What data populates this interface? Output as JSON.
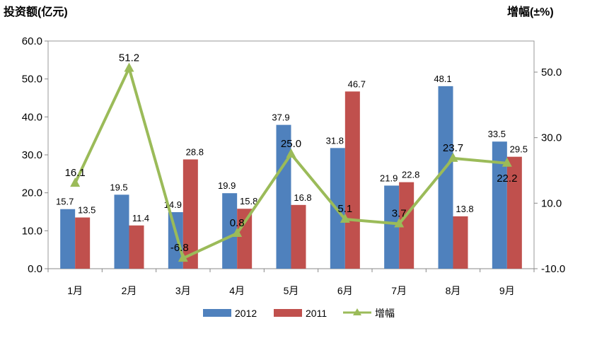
{
  "chart_data": {
    "type": "bar+line",
    "categories": [
      "1月",
      "2月",
      "3月",
      "4月",
      "5月",
      "6月",
      "7月",
      "8月",
      "9月"
    ],
    "series": [
      {
        "name": "2012",
        "type": "bar",
        "axis": "left",
        "color": "#4F81BD",
        "values": [
          15.7,
          19.5,
          14.9,
          19.9,
          37.9,
          31.8,
          21.9,
          48.1,
          33.5
        ]
      },
      {
        "name": "2011",
        "type": "bar",
        "axis": "left",
        "color": "#C0504D",
        "values": [
          13.5,
          11.4,
          28.8,
          15.8,
          16.8,
          46.7,
          22.8,
          13.8,
          29.5
        ]
      },
      {
        "name": "增幅",
        "type": "line",
        "axis": "right",
        "color": "#9BBB59",
        "values": [
          16.1,
          51.2,
          -6.8,
          0.8,
          25.0,
          5.1,
          3.7,
          23.7,
          22.2
        ]
      }
    ],
    "ylabel": "投资额(亿元)",
    "y2label": "增幅(±%)",
    "ylim": [
      0,
      60
    ],
    "yticks": [
      "0.0",
      "10.0",
      "20.0",
      "30.0",
      "40.0",
      "50.0",
      "60.0"
    ],
    "y2lim": [
      -10,
      60
    ],
    "y2ticks": [
      "-10.0",
      "10.0",
      "30.0",
      "50.0"
    ],
    "legend_position": "bottom",
    "grid": false
  }
}
